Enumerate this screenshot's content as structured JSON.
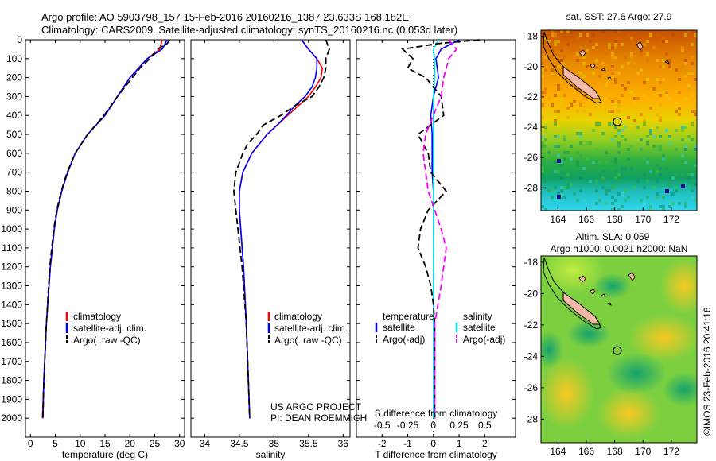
{
  "header": {
    "line1": "Argo profile: AO 5903798_157 15-Feb-2016 20160216_1387 23.633S 168.182E",
    "line2": "Climatology: CARS2009. Satellite-adjusted climatology: synTS_20160216.nc (0.053d later)"
  },
  "sst_title": "sat. SST: 27.6 Argo: 27.9",
  "sla_title1": "Altim. SLA: 0.059",
  "sla_title2": "Argo h1000: 0.0021 h2000: NaN",
  "credit": "©IMOS 23-Feb-2016 20:41:16",
  "project": {
    "line1": "US ARGO PROJECT",
    "line2": "PI: DEAN ROEMMICH"
  },
  "colors": {
    "climatology": "#ff0000",
    "satellite": "#0000ff",
    "argo": "#000000",
    "s_sat": "#00e5ee",
    "s_argo": "#ff00ff"
  },
  "chart_data": [
    {
      "type": "line",
      "id": "temperature",
      "xlabel": "temperature (deg C)",
      "ylabel": "",
      "xlim": [
        -1,
        31
      ],
      "ylim": [
        2100,
        0
      ],
      "xticks": [
        "0",
        "5",
        "10",
        "15",
        "20",
        "25",
        "30"
      ],
      "xtick_values": [
        0,
        5,
        10,
        15,
        20,
        25,
        30
      ],
      "yticks": [
        "0",
        "100",
        "200",
        "300",
        "400",
        "500",
        "600",
        "700",
        "800",
        "900",
        "1000",
        "1100",
        "1200",
        "1300",
        "1400",
        "1500",
        "1600",
        "1700",
        "1800",
        "1900",
        "2000"
      ],
      "ytick_values": [
        0,
        100,
        200,
        300,
        400,
        500,
        600,
        700,
        800,
        900,
        1000,
        1100,
        1200,
        1300,
        1400,
        1500,
        1600,
        1700,
        1800,
        1900,
        2000
      ],
      "legend": [
        "climatology",
        "satellite-adj. clim.",
        "Argo(..raw -QC)"
      ],
      "series": [
        {
          "name": "climatology",
          "depth": [
            0,
            50,
            100,
            200,
            300,
            400,
            500,
            600,
            700,
            800,
            900,
            1000,
            1200,
            1500,
            1800,
            2000
          ],
          "values": [
            26.5,
            26.0,
            23.5,
            20.0,
            17.5,
            15.0,
            11.5,
            9.0,
            7.5,
            6.3,
            5.4,
            4.8,
            4.0,
            3.2,
            2.7,
            2.4
          ]
        },
        {
          "name": "satellite",
          "depth": [
            0,
            50,
            100,
            200,
            300,
            400,
            500,
            600,
            700,
            800,
            900,
            1000,
            1200,
            1500,
            1800,
            2000
          ],
          "values": [
            27.5,
            26.5,
            23.5,
            20.0,
            17.5,
            15.0,
            11.5,
            9.0,
            7.5,
            6.3,
            5.4,
            4.8,
            4.0,
            3.2,
            2.7,
            2.5
          ]
        },
        {
          "name": "argo",
          "depth": [
            0,
            20,
            50,
            100,
            150,
            200,
            300,
            400,
            500,
            600,
            700,
            800,
            900,
            1000,
            1200,
            1500,
            1800,
            2000
          ],
          "values": [
            28.0,
            27.5,
            25.5,
            24.0,
            22.0,
            20.5,
            17.5,
            14.8,
            11.5,
            9.0,
            7.4,
            6.2,
            5.3,
            4.7,
            3.9,
            3.2,
            2.7,
            2.5
          ]
        }
      ]
    },
    {
      "type": "line",
      "id": "salinity",
      "xlabel": "salinity",
      "xlim": [
        33.8,
        36.1
      ],
      "ylim": [
        2100,
        0
      ],
      "xticks": [
        "34",
        "34.5",
        "35",
        "35.5",
        "36"
      ],
      "xtick_values": [
        34,
        34.5,
        35,
        35.5,
        36
      ],
      "legend": [
        "climatology",
        "satellite-adj. clim.",
        "Argo(..raw -QC)"
      ],
      "series": [
        {
          "name": "climatology",
          "depth": [
            0,
            50,
            100,
            150,
            200,
            250,
            300,
            350,
            400,
            450,
            500,
            600,
            700,
            800,
            900,
            1000,
            1200,
            1500,
            1800,
            2000
          ],
          "values": [
            35.4,
            35.5,
            35.62,
            35.7,
            35.68,
            35.6,
            35.5,
            35.35,
            35.2,
            35.05,
            34.9,
            34.68,
            34.55,
            34.5,
            34.5,
            34.52,
            34.56,
            34.6,
            34.63,
            34.65
          ]
        },
        {
          "name": "satellite",
          "depth": [
            0,
            50,
            100,
            150,
            200,
            250,
            300,
            350,
            400,
            450,
            500,
            600,
            700,
            800,
            900,
            1000,
            1200,
            1500,
            1800,
            2000
          ],
          "values": [
            35.4,
            35.5,
            35.62,
            35.62,
            35.6,
            35.55,
            35.45,
            35.3,
            35.18,
            35.05,
            34.9,
            34.68,
            34.55,
            34.5,
            34.5,
            34.52,
            34.56,
            34.6,
            34.63,
            34.65
          ]
        },
        {
          "name": "argo",
          "depth": [
            0,
            50,
            100,
            150,
            200,
            250,
            300,
            350,
            400,
            450,
            500,
            550,
            600,
            700,
            800,
            900,
            1000,
            1200,
            1500,
            1800,
            2000
          ],
          "values": [
            35.75,
            35.8,
            35.75,
            35.75,
            35.72,
            35.65,
            35.55,
            35.3,
            35.1,
            34.85,
            34.75,
            34.62,
            34.55,
            34.45,
            34.42,
            34.45,
            34.48,
            34.54,
            34.6,
            34.63,
            34.65
          ]
        }
      ]
    },
    {
      "type": "line",
      "id": "difference",
      "xlabel": "T difference from climatology",
      "top_label": "S difference from climatology",
      "xlim": [
        -3,
        3.2
      ],
      "ylim": [
        2100,
        0
      ],
      "xticks": [
        "-2",
        "-1",
        "0",
        "1",
        "2"
      ],
      "xtick_values": [
        -2,
        -1,
        0,
        1,
        2
      ],
      "sticks": [
        "-0.5",
        "-0.25",
        "0",
        "0.25",
        "0.5"
      ],
      "stick_values": [
        -2,
        -1,
        0,
        1,
        2
      ],
      "legend_t": [
        "temperature",
        "satellite",
        "Argo(-adj)"
      ],
      "legend_s": [
        "salinity",
        "satellite",
        "Argo(-adj)"
      ],
      "series": [
        {
          "name": "T satellite",
          "depth": [
            0,
            50,
            100,
            200,
            300,
            400,
            500,
            600,
            700,
            800,
            1000,
            1500,
            2000
          ],
          "values": [
            1.0,
            0.3,
            0.1,
            0.2,
            0.0,
            -0.1,
            -0.05,
            -0.05,
            -0.05,
            0.0,
            0.0,
            0.0,
            0.05
          ]
        },
        {
          "name": "T Argo(-adj)",
          "depth": [
            0,
            20,
            50,
            100,
            150,
            200,
            300,
            400,
            500,
            600,
            700,
            800,
            900,
            1000,
            1100,
            1200,
            1300,
            1400,
            1500,
            2000
          ],
          "values": [
            1.8,
            0.2,
            -1.2,
            -0.8,
            -1.0,
            -0.3,
            0.3,
            0.4,
            -0.6,
            -0.2,
            -0.1,
            0.5,
            -0.2,
            -0.5,
            -0.6,
            -0.3,
            -0.1,
            0.0,
            0.05,
            0.05
          ]
        },
        {
          "name": "S satellite",
          "depth": [
            0,
            50,
            100,
            200,
            300,
            400,
            500,
            600,
            800,
            1000,
            1500,
            2000
          ],
          "values": [
            0.2,
            0.0,
            0.05,
            0.05,
            0.0,
            0.0,
            0.0,
            0.0,
            0.0,
            0.0,
            0.0,
            0.0
          ]
        },
        {
          "name": "S Argo(-adj)",
          "depth": [
            0,
            50,
            100,
            150,
            200,
            300,
            400,
            500,
            600,
            700,
            800,
            1000,
            1100,
            1200,
            1300,
            1500,
            2000
          ],
          "values": [
            0.6,
            0.9,
            0.6,
            0.5,
            0.4,
            0.3,
            0.0,
            -0.3,
            -0.4,
            -0.3,
            -0.2,
            0.3,
            0.5,
            0.4,
            0.3,
            0.05,
            0.05
          ]
        }
      ]
    },
    {
      "type": "heatmap",
      "id": "sst_map",
      "title": "sat. SST: 27.6 Argo: 27.9",
      "xticks": [
        "164",
        "166",
        "168",
        "170",
        "172"
      ],
      "xtick_values": [
        164,
        166,
        168,
        170,
        172
      ],
      "yticks": [
        "-18",
        "-20",
        "-22",
        "-24",
        "-26",
        "-28"
      ],
      "ytick_values": [
        -18,
        -20,
        -22,
        -24,
        -26,
        -28
      ],
      "xlim": [
        162.8,
        173.8
      ],
      "ylim": [
        -29.5,
        -17.6
      ],
      "marker": [
        168.182,
        -23.633
      ]
    },
    {
      "type": "heatmap",
      "id": "sla_map",
      "title": "Altim. SLA: 0.059",
      "xticks": [
        "164",
        "166",
        "168",
        "170",
        "172"
      ],
      "xtick_values": [
        164,
        166,
        168,
        170,
        172
      ],
      "yticks": [
        "-18",
        "-20",
        "-22",
        "-24",
        "-26",
        "-28"
      ],
      "ytick_values": [
        -18,
        -20,
        -22,
        -24,
        -26,
        -28
      ],
      "xlim": [
        162.8,
        173.8
      ],
      "ylim": [
        -29.5,
        -17.6
      ],
      "marker": [
        168.182,
        -23.633
      ]
    }
  ]
}
